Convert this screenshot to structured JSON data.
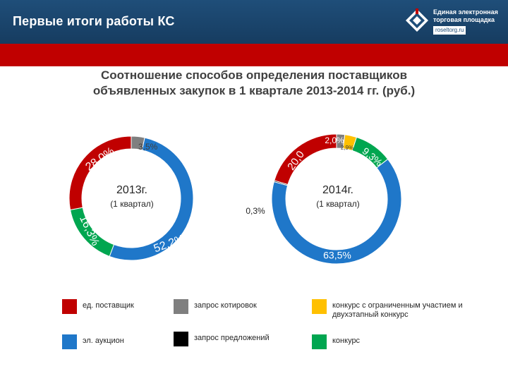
{
  "header": {
    "title": "Первые итоги работы КС",
    "logo_text_line1": "Единая электронная",
    "logo_text_line2": "торговая площадка",
    "logo_url": "roseltorg.ru"
  },
  "slide_title_line1": "Соотношение способов определения  поставщиков",
  "slide_title_line2": "объявленных закупок в 1 квартале 2013-2014 гг. (руб.)",
  "colors": {
    "ed_postavshik": "#c00000",
    "zapros_kotirovok": "#7f7f7f",
    "konkurs_ogr": "#ffc000",
    "el_auktsion": "#1f77c9",
    "zapros_predlozheniy": "#000000",
    "konkurs": "#00a650"
  },
  "legend": [
    {
      "key": "ed_postavshik",
      "label": "ед. поставщик"
    },
    {
      "key": "zapros_kotirovok",
      "label": "запрос котировок"
    },
    {
      "key": "konkurs_ogr",
      "label": "конкурс с ограниченным участием и двухэтапный конкурс"
    },
    {
      "key": "el_auktsion",
      "label": "эл. аукцион"
    },
    {
      "key": "zapros_predlozheniy",
      "label": "запрос предложений"
    },
    {
      "key": "konkurs",
      "label": "конкурс"
    }
  ],
  "chart_data": [
    {
      "type": "pie",
      "donut": true,
      "center_line1": "2013г.",
      "center_line2": "(1 квартал)",
      "slices": [
        {
          "key": "zapros_kotirovok",
          "value": 3.5,
          "label": "3,5%"
        },
        {
          "key": "el_auktsion",
          "value": 52.2,
          "label": "52,2%"
        },
        {
          "key": "konkurs",
          "value": 16.3,
          "label": "16,3%"
        },
        {
          "key": "ed_postavshik",
          "value": 28.0,
          "label": "28,0%"
        }
      ]
    },
    {
      "type": "pie",
      "donut": true,
      "center_line1": "2014г.",
      "center_line2": "(1 квартал)",
      "slices": [
        {
          "key": "zapros_kotirovok",
          "value": 2.0,
          "label": "2,0%"
        },
        {
          "key": "konkurs_ogr",
          "value": 2.9,
          "label": "2,9%"
        },
        {
          "key": "konkurs",
          "value": 9.3,
          "label": "9,3%"
        },
        {
          "key": "el_auktsion",
          "value": 63.5,
          "label": "63,5%"
        },
        {
          "key": "zapros_predlozheniy",
          "value": 0.3,
          "label": "0,3%"
        },
        {
          "key": "ed_postavshik",
          "value": 20.0,
          "label": "20,0"
        }
      ]
    }
  ]
}
